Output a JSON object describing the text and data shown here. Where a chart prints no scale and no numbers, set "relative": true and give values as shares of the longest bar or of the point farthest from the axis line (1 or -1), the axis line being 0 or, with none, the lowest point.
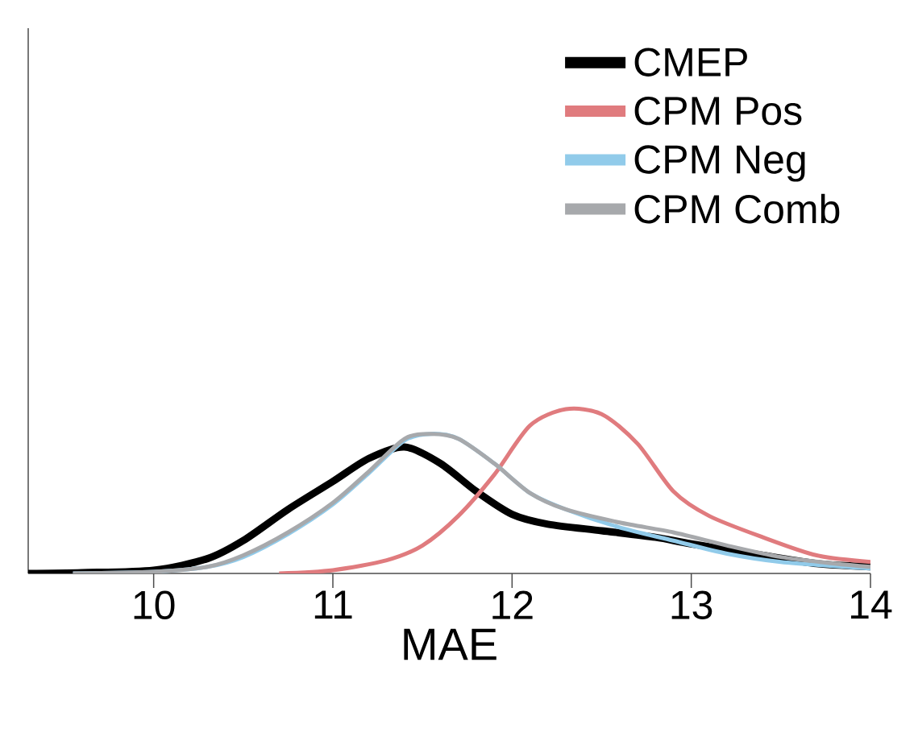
{
  "chart_data": {
    "type": "line",
    "xlabel": "MAE",
    "relative": true,
    "xlim": [
      9.3,
      14
    ],
    "xticks": [
      10,
      11,
      12,
      13,
      14
    ],
    "legend": "top right",
    "line_style": "solid",
    "marker": "none",
    "grid": false,
    "series": [
      {
        "name": "CMEP",
        "color": "#000000",
        "x": [
          9.3,
          9.6,
          10,
          10.3,
          10.5,
          10.75,
          11,
          11.2,
          11.4,
          11.6,
          11.8,
          12,
          12.2,
          12.5,
          12.8,
          13,
          13.4,
          13.7,
          14
        ],
        "values": [
          0,
          0.005,
          0.02,
          0.09,
          0.2,
          0.39,
          0.56,
          0.7,
          0.77,
          0.67,
          0.5,
          0.36,
          0.3,
          0.26,
          0.22,
          0.18,
          0.11,
          0.06,
          0.04
        ]
      },
      {
        "name": "CPM Pos",
        "color": "#e07b7e",
        "x": [
          10.7,
          11,
          11.3,
          11.5,
          11.7,
          11.9,
          12.1,
          12.3,
          12.5,
          12.7,
          12.9,
          13.1,
          13.4,
          13.7,
          14
        ],
        "values": [
          0,
          0.02,
          0.08,
          0.17,
          0.35,
          0.6,
          0.9,
          1.0,
          0.97,
          0.79,
          0.5,
          0.35,
          0.22,
          0.11,
          0.07
        ]
      },
      {
        "name": "CPM Neg",
        "color": "#91cbea",
        "x": [
          9.55,
          10,
          10.3,
          10.5,
          10.75,
          11,
          11.2,
          11.4,
          11.55,
          11.7,
          11.9,
          12.1,
          12.3,
          12.6,
          12.9,
          13.2,
          13.5,
          14
        ],
        "values": [
          0,
          0.01,
          0.04,
          0.1,
          0.24,
          0.42,
          0.61,
          0.81,
          0.85,
          0.82,
          0.67,
          0.49,
          0.39,
          0.28,
          0.2,
          0.12,
          0.07,
          0.03
        ]
      },
      {
        "name": "CPM Comb",
        "color": "#a7a9ac",
        "x": [
          9.55,
          10,
          10.3,
          10.5,
          10.75,
          11,
          11.2,
          11.4,
          11.55,
          11.7,
          11.9,
          12.1,
          12.3,
          12.6,
          12.9,
          13.2,
          13.5,
          13.8,
          14
        ],
        "values": [
          0,
          0.01,
          0.04,
          0.11,
          0.25,
          0.43,
          0.62,
          0.82,
          0.85,
          0.82,
          0.67,
          0.49,
          0.39,
          0.31,
          0.25,
          0.17,
          0.1,
          0.06,
          0.04
        ]
      }
    ]
  }
}
